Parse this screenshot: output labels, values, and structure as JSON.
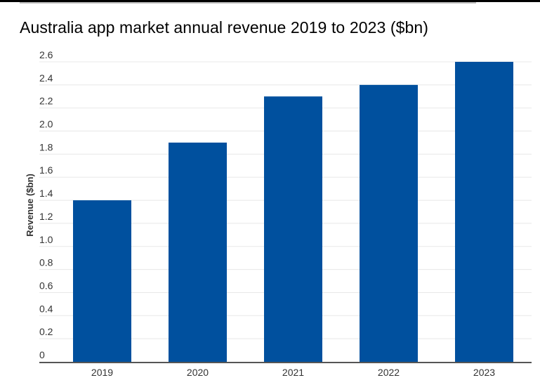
{
  "chart_data": {
    "type": "bar",
    "title": "Australia app market annual revenue 2019 to 2023 ($bn)",
    "xlabel": "",
    "ylabel": "Revenue ($bn)",
    "categories": [
      "2019",
      "2020",
      "2021",
      "2022",
      "2023"
    ],
    "values": [
      1.4,
      1.9,
      2.3,
      2.4,
      2.6
    ],
    "ylim": [
      0,
      2.6
    ],
    "yticks": [
      "0",
      "0.2",
      "0.4",
      "0.6",
      "0.8",
      "1.0",
      "1.2",
      "1.4",
      "1.6",
      "1.8",
      "2.0",
      "2.2",
      "2.4",
      "2.6"
    ],
    "grid": true,
    "bar_color": "#00509e"
  }
}
